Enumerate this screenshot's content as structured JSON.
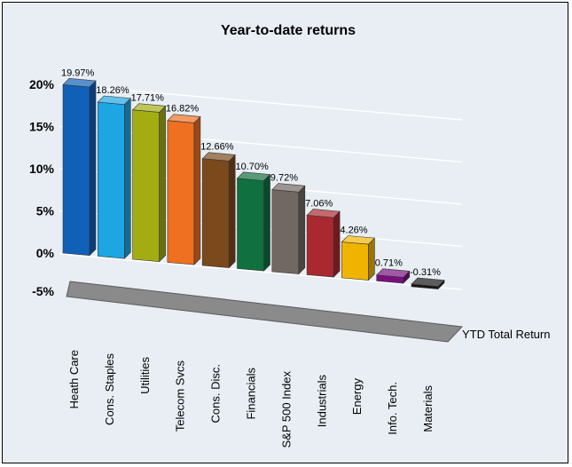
{
  "chart_data": {
    "type": "bar",
    "title": "Year-to-date returns",
    "categories": [
      "Heath Care",
      "Cons. Staples",
      "Utilities",
      "Telecom Svcs",
      "Cons. Disc.",
      "Financials",
      "S&P 500 Index",
      "Industrials",
      "Energy",
      "Info. Tech.",
      "Materials"
    ],
    "series": [
      {
        "name": "YTD Total Return",
        "values": [
          19.97,
          18.26,
          17.71,
          16.82,
          12.66,
          10.7,
          9.72,
          7.06,
          4.26,
          0.71,
          -0.31
        ],
        "value_labels": [
          "19.97%",
          "18.26%",
          "17.71%",
          "16.82%",
          "12.66%",
          "10.70%",
          "9.72%",
          "7.06%",
          "4.26%",
          "0.71%",
          "-0.31%"
        ]
      }
    ],
    "bar_colors": [
      "#1060b8",
      "#1ea6e4",
      "#a3ad12",
      "#ee7020",
      "#7a4a1c",
      "#107040",
      "#726862",
      "#aa2830",
      "#f0b400",
      "#7a1080",
      "#161616"
    ],
    "ylim": [
      -5,
      20
    ],
    "yticks": [
      -5,
      0,
      5,
      10,
      15,
      20
    ],
    "ytick_labels": [
      "-5%",
      "0%",
      "5%",
      "10%",
      "15%",
      "20%"
    ],
    "xlabel": "",
    "ylabel": "",
    "grid": true,
    "three_d": true,
    "background": "#e8eef4"
  }
}
